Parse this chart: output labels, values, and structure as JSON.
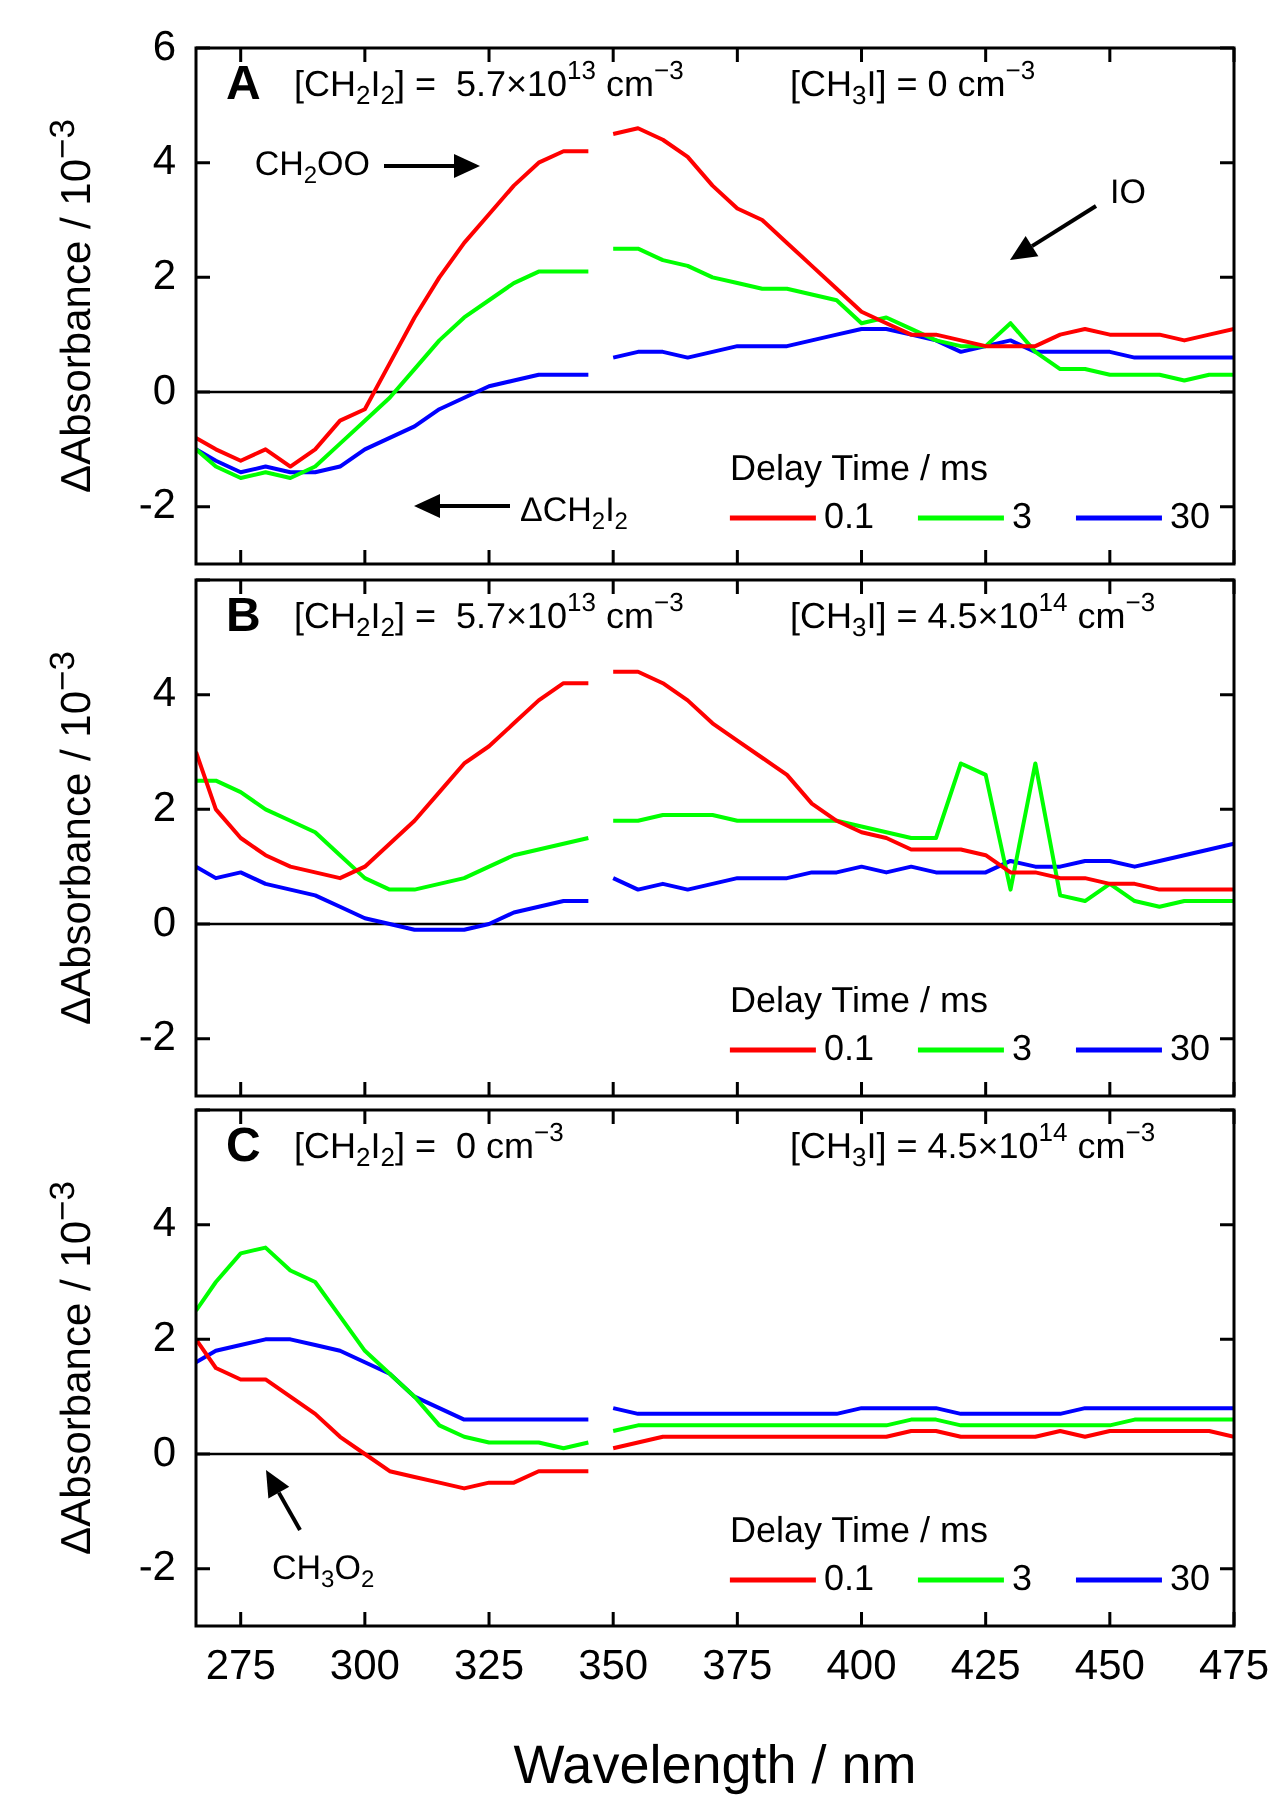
{
  "chart_data": [
    {
      "type": "line",
      "ylabel": "ΔAbsorbance / 10$^{−3}$",
      "legend": "bottom right",
      "legend_title": "Delay Time / ms",
      "marker": "none",
      "tick_labels": "y",
      "annotations": [
        "A",
        "[CH$_{2}$I$_{2}$] =  5.7×10$^{13}$ cm$^{−3}$",
        "[CH$_{3}$I] = 0 cm$^{−3}$",
        "CH$_{2}$OO",
        "IO",
        "ΔCH$_{2}$I$_{2}$"
      ],
      "xlim": [
        266,
        475
      ],
      "xticks": [
        275,
        300,
        325,
        350,
        375,
        400,
        425,
        450,
        475
      ],
      "ylim": [
        -3,
        6
      ],
      "yticks": [
        -2,
        0,
        2,
        4,
        6
      ],
      "ref_lines": [
        {
          "axis": "y",
          "value": 0,
          "color": "#000000"
        }
      ],
      "x": [
        266,
        270,
        275,
        280,
        285,
        290,
        295,
        300,
        305,
        310,
        315,
        320,
        325,
        330,
        335,
        340,
        345,
        347,
        350,
        355,
        360,
        365,
        370,
        375,
        380,
        385,
        390,
        395,
        400,
        405,
        410,
        415,
        420,
        425,
        430,
        435,
        440,
        445,
        450,
        455,
        460,
        465,
        470,
        475
      ],
      "series": [
        {
          "name": "0.1",
          "color": "#ff0000",
          "values": [
            -0.8,
            -1.0,
            -1.2,
            -1.0,
            -1.3,
            -1.0,
            -0.5,
            -0.3,
            0.5,
            1.3,
            2.0,
            2.6,
            3.1,
            3.6,
            4.0,
            4.2,
            4.2,
            null,
            4.5,
            4.6,
            4.4,
            4.1,
            3.6,
            3.2,
            3.0,
            2.6,
            2.2,
            1.8,
            1.4,
            1.2,
            1.0,
            1.0,
            0.9,
            0.8,
            0.8,
            0.8,
            1.0,
            1.1,
            1.0,
            1.0,
            1.0,
            0.9,
            1.0,
            1.1
          ]
        },
        {
          "name": "3",
          "color": "#00ff00",
          "values": [
            -1.0,
            -1.3,
            -1.5,
            -1.4,
            -1.5,
            -1.3,
            -0.9,
            -0.5,
            -0.1,
            0.4,
            0.9,
            1.3,
            1.6,
            1.9,
            2.1,
            2.1,
            2.1,
            null,
            2.5,
            2.5,
            2.3,
            2.2,
            2.0,
            1.9,
            1.8,
            1.8,
            1.7,
            1.6,
            1.2,
            1.3,
            1.1,
            0.9,
            0.8,
            0.8,
            1.2,
            0.7,
            0.4,
            0.4,
            0.3,
            0.3,
            0.3,
            0.2,
            0.3,
            0.3
          ]
        },
        {
          "name": "30",
          "color": "#0000ff",
          "values": [
            -1.0,
            -1.2,
            -1.4,
            -1.3,
            -1.4,
            -1.4,
            -1.3,
            -1.0,
            -0.8,
            -0.6,
            -0.3,
            -0.1,
            0.1,
            0.2,
            0.3,
            0.3,
            0.3,
            null,
            0.6,
            0.7,
            0.7,
            0.6,
            0.7,
            0.8,
            0.8,
            0.8,
            0.9,
            1.0,
            1.1,
            1.1,
            1.0,
            0.9,
            0.7,
            0.8,
            0.9,
            0.7,
            0.7,
            0.7,
            0.7,
            0.6,
            0.6,
            0.6,
            0.6,
            0.6
          ]
        }
      ]
    },
    {
      "type": "line",
      "ylabel": "ΔAbsorbance / 10$^{−3}$",
      "legend": "bottom right",
      "legend_title": "Delay Time / ms",
      "marker": "none",
      "tick_labels": "y",
      "annotations": [
        "B",
        "[CH$_{2}$I$_{2}$] =  5.7×10$^{13}$ cm$^{−3}$",
        "[CH$_{3}$I] = 4.5×10$^{14}$ cm$^{−3}$"
      ],
      "xlim": [
        266,
        475
      ],
      "xticks": [
        275,
        300,
        325,
        350,
        375,
        400,
        425,
        450,
        475
      ],
      "ylim": [
        -3,
        6
      ],
      "yticks": [
        -2,
        0,
        2,
        4,
        {
          "value": 6,
          "label": null
        }
      ],
      "ref_lines": [
        {
          "axis": "y",
          "value": 0,
          "color": "#000000"
        }
      ],
      "x": [
        266,
        270,
        275,
        280,
        285,
        290,
        295,
        300,
        305,
        310,
        315,
        320,
        325,
        330,
        335,
        340,
        345,
        347,
        350,
        355,
        360,
        365,
        370,
        375,
        380,
        385,
        390,
        395,
        400,
        405,
        410,
        415,
        420,
        425,
        430,
        435,
        440,
        445,
        450,
        455,
        460,
        465,
        470,
        475
      ],
      "series": [
        {
          "name": "0.1",
          "color": "#ff0000",
          "values": [
            3.0,
            2.0,
            1.5,
            1.2,
            1.0,
            0.9,
            0.8,
            1.0,
            1.4,
            1.8,
            2.3,
            2.8,
            3.1,
            3.5,
            3.9,
            4.2,
            4.2,
            null,
            4.4,
            4.4,
            4.2,
            3.9,
            3.5,
            3.2,
            2.9,
            2.6,
            2.1,
            1.8,
            1.6,
            1.5,
            1.3,
            1.3,
            1.3,
            1.2,
            0.9,
            0.9,
            0.8,
            0.8,
            0.7,
            0.7,
            0.6,
            0.6,
            0.6,
            0.6
          ]
        },
        {
          "name": "3",
          "color": "#00ff00",
          "values": [
            2.5,
            2.5,
            2.3,
            2.0,
            1.8,
            1.6,
            1.2,
            0.8,
            0.6,
            0.6,
            0.7,
            0.8,
            1.0,
            1.2,
            1.3,
            1.4,
            1.5,
            null,
            1.8,
            1.8,
            1.9,
            1.9,
            1.9,
            1.8,
            1.8,
            1.8,
            1.8,
            1.8,
            1.7,
            1.6,
            1.5,
            1.5,
            2.8,
            2.6,
            0.6,
            2.8,
            0.5,
            0.4,
            0.7,
            0.4,
            0.3,
            0.4,
            0.4,
            0.4
          ]
        },
        {
          "name": "30",
          "color": "#0000ff",
          "values": [
            1.0,
            0.8,
            0.9,
            0.7,
            0.6,
            0.5,
            0.3,
            0.1,
            0.0,
            -0.1,
            -0.1,
            -0.1,
            0.0,
            0.2,
            0.3,
            0.4,
            0.4,
            null,
            0.8,
            0.6,
            0.7,
            0.6,
            0.7,
            0.8,
            0.8,
            0.8,
            0.9,
            0.9,
            1.0,
            0.9,
            1.0,
            0.9,
            0.9,
            0.9,
            1.1,
            1.0,
            1.0,
            1.1,
            1.1,
            1.0,
            1.1,
            1.2,
            1.3,
            1.4
          ]
        }
      ]
    },
    {
      "type": "line",
      "xlabel": "Wavelength / nm",
      "ylabel": "ΔAbsorbance / 10$^{−3}$",
      "legend": "bottom right",
      "legend_title": "Delay Time / ms",
      "marker": "none",
      "annotations": [
        "C",
        "[CH$_{2}$I$_{2}$] =  0 cm$^{−3}$",
        "[CH$_{3}$I] = 4.5×10$^{14}$ cm$^{−3}$",
        "CH$_{3}$O$_{2}$"
      ],
      "xlim": [
        266,
        475
      ],
      "xticks": [
        275,
        300,
        325,
        350,
        375,
        400,
        425,
        450,
        475
      ],
      "ylim": [
        -3,
        6
      ],
      "yticks": [
        -2,
        0,
        2,
        4,
        {
          "value": 6,
          "label": null
        }
      ],
      "ref_lines": [
        {
          "axis": "y",
          "value": 0,
          "color": "#000000"
        }
      ],
      "x": [
        266,
        270,
        275,
        280,
        285,
        290,
        295,
        300,
        305,
        310,
        315,
        320,
        325,
        330,
        335,
        340,
        345,
        347,
        350,
        355,
        360,
        365,
        370,
        375,
        380,
        385,
        390,
        395,
        400,
        405,
        410,
        415,
        420,
        425,
        430,
        435,
        440,
        445,
        450,
        455,
        460,
        465,
        470,
        475
      ],
      "series": [
        {
          "name": "0.1",
          "color": "#ff0000",
          "values": [
            2.0,
            1.5,
            1.3,
            1.3,
            1.0,
            0.7,
            0.3,
            0.0,
            -0.3,
            -0.4,
            -0.5,
            -0.6,
            -0.5,
            -0.5,
            -0.3,
            -0.3,
            -0.3,
            null,
            0.1,
            0.2,
            0.3,
            0.3,
            0.3,
            0.3,
            0.3,
            0.3,
            0.3,
            0.3,
            0.3,
            0.3,
            0.4,
            0.4,
            0.3,
            0.3,
            0.3,
            0.3,
            0.4,
            0.3,
            0.4,
            0.4,
            0.4,
            0.4,
            0.4,
            0.3
          ]
        },
        {
          "name": "3",
          "color": "#00ff00",
          "values": [
            2.5,
            3.0,
            3.5,
            3.6,
            3.2,
            3.0,
            2.4,
            1.8,
            1.4,
            1.0,
            0.5,
            0.3,
            0.2,
            0.2,
            0.2,
            0.1,
            0.2,
            null,
            0.4,
            0.5,
            0.5,
            0.5,
            0.5,
            0.5,
            0.5,
            0.5,
            0.5,
            0.5,
            0.5,
            0.5,
            0.6,
            0.6,
            0.5,
            0.5,
            0.5,
            0.5,
            0.5,
            0.5,
            0.5,
            0.6,
            0.6,
            0.6,
            0.6,
            0.6
          ]
        },
        {
          "name": "30",
          "color": "#0000ff",
          "values": [
            1.6,
            1.8,
            1.9,
            2.0,
            2.0,
            1.9,
            1.8,
            1.6,
            1.4,
            1.0,
            0.8,
            0.6,
            0.6,
            0.6,
            0.6,
            0.6,
            0.6,
            null,
            0.8,
            0.7,
            0.7,
            0.7,
            0.7,
            0.7,
            0.7,
            0.7,
            0.7,
            0.7,
            0.8,
            0.8,
            0.8,
            0.8,
            0.7,
            0.7,
            0.7,
            0.7,
            0.7,
            0.8,
            0.8,
            0.8,
            0.8,
            0.8,
            0.8,
            0.8
          ]
        }
      ]
    }
  ]
}
